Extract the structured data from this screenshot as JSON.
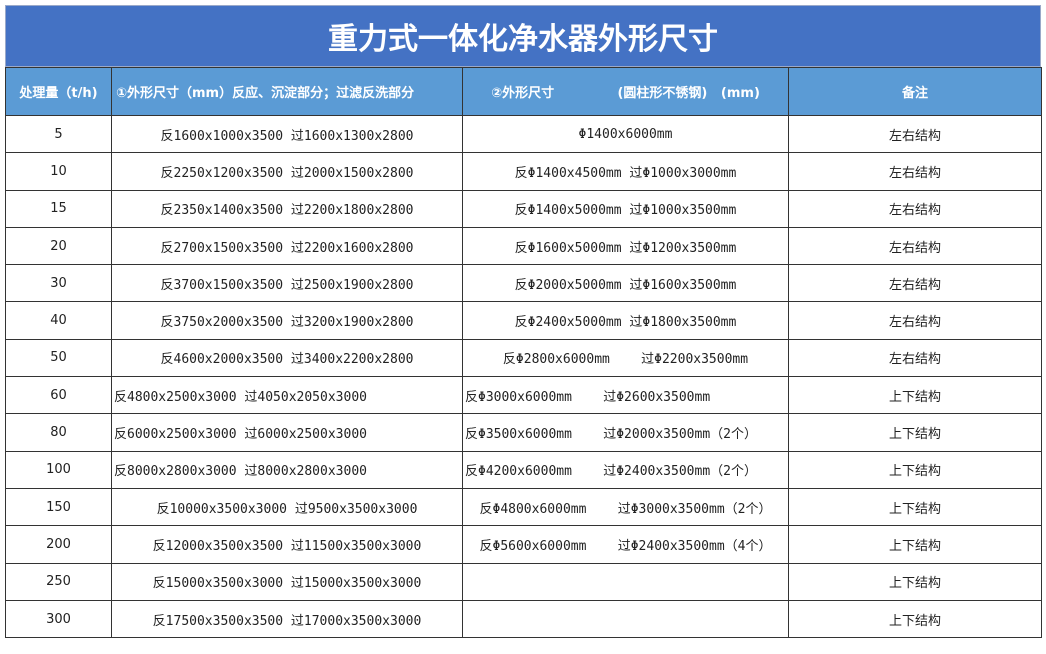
{
  "title": "重力式一体化净水器外形尺寸",
  "table": {
    "header": [
      "处理量（t/h)",
      "①外形尺寸（mm）反应、沉淀部分；过滤反洗部分",
      "②外形尺寸              (圆柱形不锈钢)   (mm)",
      "备注"
    ],
    "rows": [
      [
        "5",
        "反1600x1000x3500 过1600x1300x2800",
        "Φ1400x6000mm",
        "左右结构"
      ],
      [
        "10",
        "反2250x1200x3500 过2000x1500x2800",
        "反Φ1400x4500mm 过Φ1000x3000mm",
        "左右结构"
      ],
      [
        "15",
        "反2350x1400x3500 过2200x1800x2800",
        "反Φ1400x5000mm 过Φ1000x3500mm",
        "左右结构"
      ],
      [
        "20",
        "反2700x1500x3500 过2200x1600x2800",
        "反Φ1600x5000mm 过Φ1200x3500mm",
        "左右结构"
      ],
      [
        "30",
        "反3700x1500x3500 过2500x1900x2800",
        "反Φ2000x5000mm 过Φ1600x3500mm",
        "左右结构"
      ],
      [
        "40",
        "反3750x2000x3500 过3200x1900x2800",
        "反Φ2400x5000mm 过Φ1800x3500mm",
        "左右结构"
      ],
      [
        "50",
        "反4600x2000x3500 过3400x2200x2800",
        "反Φ2800x6000mm    过Φ2200x3500mm",
        "左右结构"
      ],
      [
        "60",
        "反4800x2500x3000 过4050x2050x3000",
        "反Φ3000x6000mm    过Φ2600x3500mm",
        "上下结构"
      ],
      [
        "80",
        "反6000x2500x3000 过6000x2500x3000",
        "反Φ3500x6000mm    过Φ2000x3500mm（2个）",
        "上下结构"
      ],
      [
        "100",
        "反8000x2800x3000 过8000x2800x3000",
        "反Φ4200x6000mm    过Φ2400x3500mm（2个）",
        "上下结构"
      ],
      [
        "150",
        "反10000x3500x3000 过9500x3500x3000",
        "反Φ4800x6000mm    过Φ3000x3500mm（2个）",
        "上下结构"
      ],
      [
        "200",
        "反12000x3500x3500 过11500x3500x3000",
        "反Φ5600x6000mm    过Φ2400x3500mm（4个）",
        "上下结构"
      ],
      [
        "250",
        "反15000x3500x3000 过15000x3500x3000",
        null,
        "上下结构"
      ],
      [
        "300",
        "反17500x3500x3500 过17000x3500x3000",
        null,
        "上下结构"
      ]
    ]
  }
}
